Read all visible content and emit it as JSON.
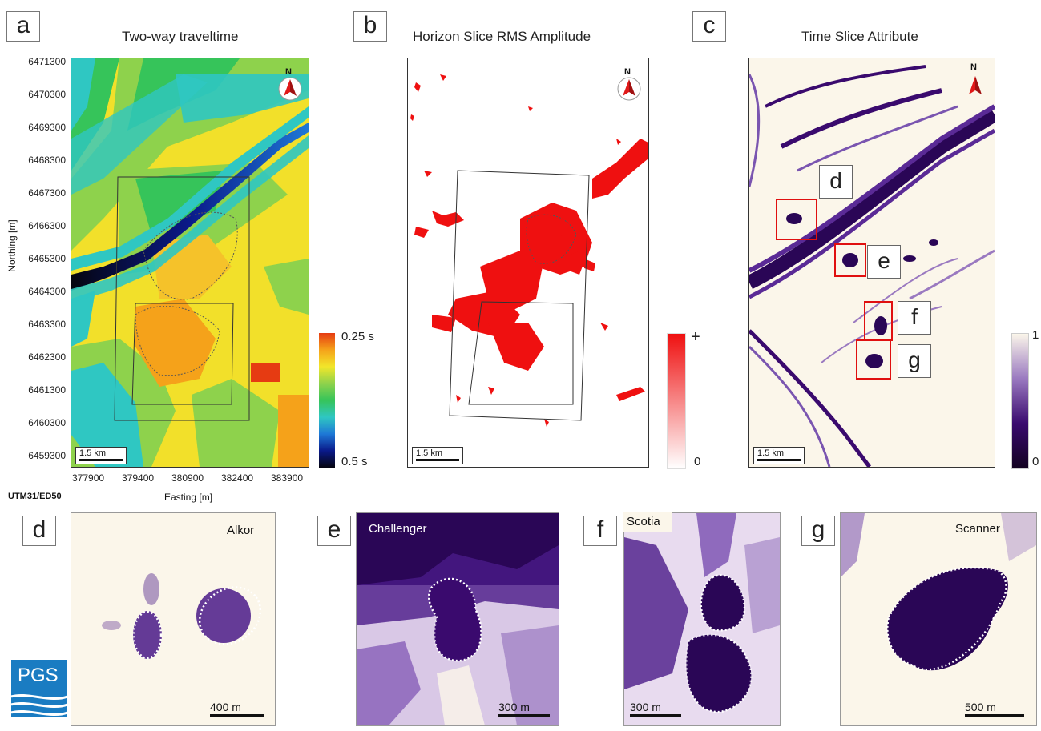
{
  "panels": {
    "a": {
      "letter": "a",
      "title": "Two-way traveltime"
    },
    "b": {
      "letter": "b",
      "title": "Horizon Slice RMS Amplitude"
    },
    "c": {
      "letter": "c",
      "title": "Time Slice Attribute"
    }
  },
  "axes": {
    "ylabel": "Northing [m]",
    "xlabel": "Easting [m]",
    "northing_ticks": [
      "6471300",
      "6470300",
      "6469300",
      "6468300",
      "6467300",
      "6466300",
      "6465300",
      "6464300",
      "6463300",
      "6462300",
      "6461300",
      "6460300",
      "6459300"
    ],
    "easting_ticks": [
      "377900",
      "379400",
      "380900",
      "382400",
      "383900"
    ],
    "crs": "UTM31/ED50"
  },
  "north_label": "N",
  "scale_map": "1.5 km",
  "colorbars": {
    "a": {
      "top": "0.25 s",
      "bottom": "0.5 s",
      "colors": [
        "#e63b12",
        "#f5a21a",
        "#f2e62a",
        "#8ed24c",
        "#36c45a",
        "#2fc7c2",
        "#1e78d6",
        "#0a1a8a",
        "#05050f"
      ]
    },
    "b": {
      "top": "+",
      "bottom": "0",
      "colors": [
        "#ef1010",
        "#ffffff"
      ]
    },
    "c": {
      "top": "1",
      "bottom": "0",
      "colors": [
        "#fbf6ea",
        "#9a79c0",
        "#3a0a6e",
        "#120220"
      ]
    }
  },
  "callouts": [
    "d",
    "e",
    "f",
    "g"
  ],
  "insets": [
    {
      "letter": "d",
      "name": "Alkor",
      "scale": "400 m"
    },
    {
      "letter": "e",
      "name": "Challenger",
      "scale": "300 m"
    },
    {
      "letter": "f",
      "name": "Scotia",
      "scale": "300 m"
    },
    {
      "letter": "g",
      "name": "Scanner",
      "scale": "500 m"
    }
  ],
  "logo": {
    "text": "PGS",
    "color": "#1a7cc2"
  }
}
